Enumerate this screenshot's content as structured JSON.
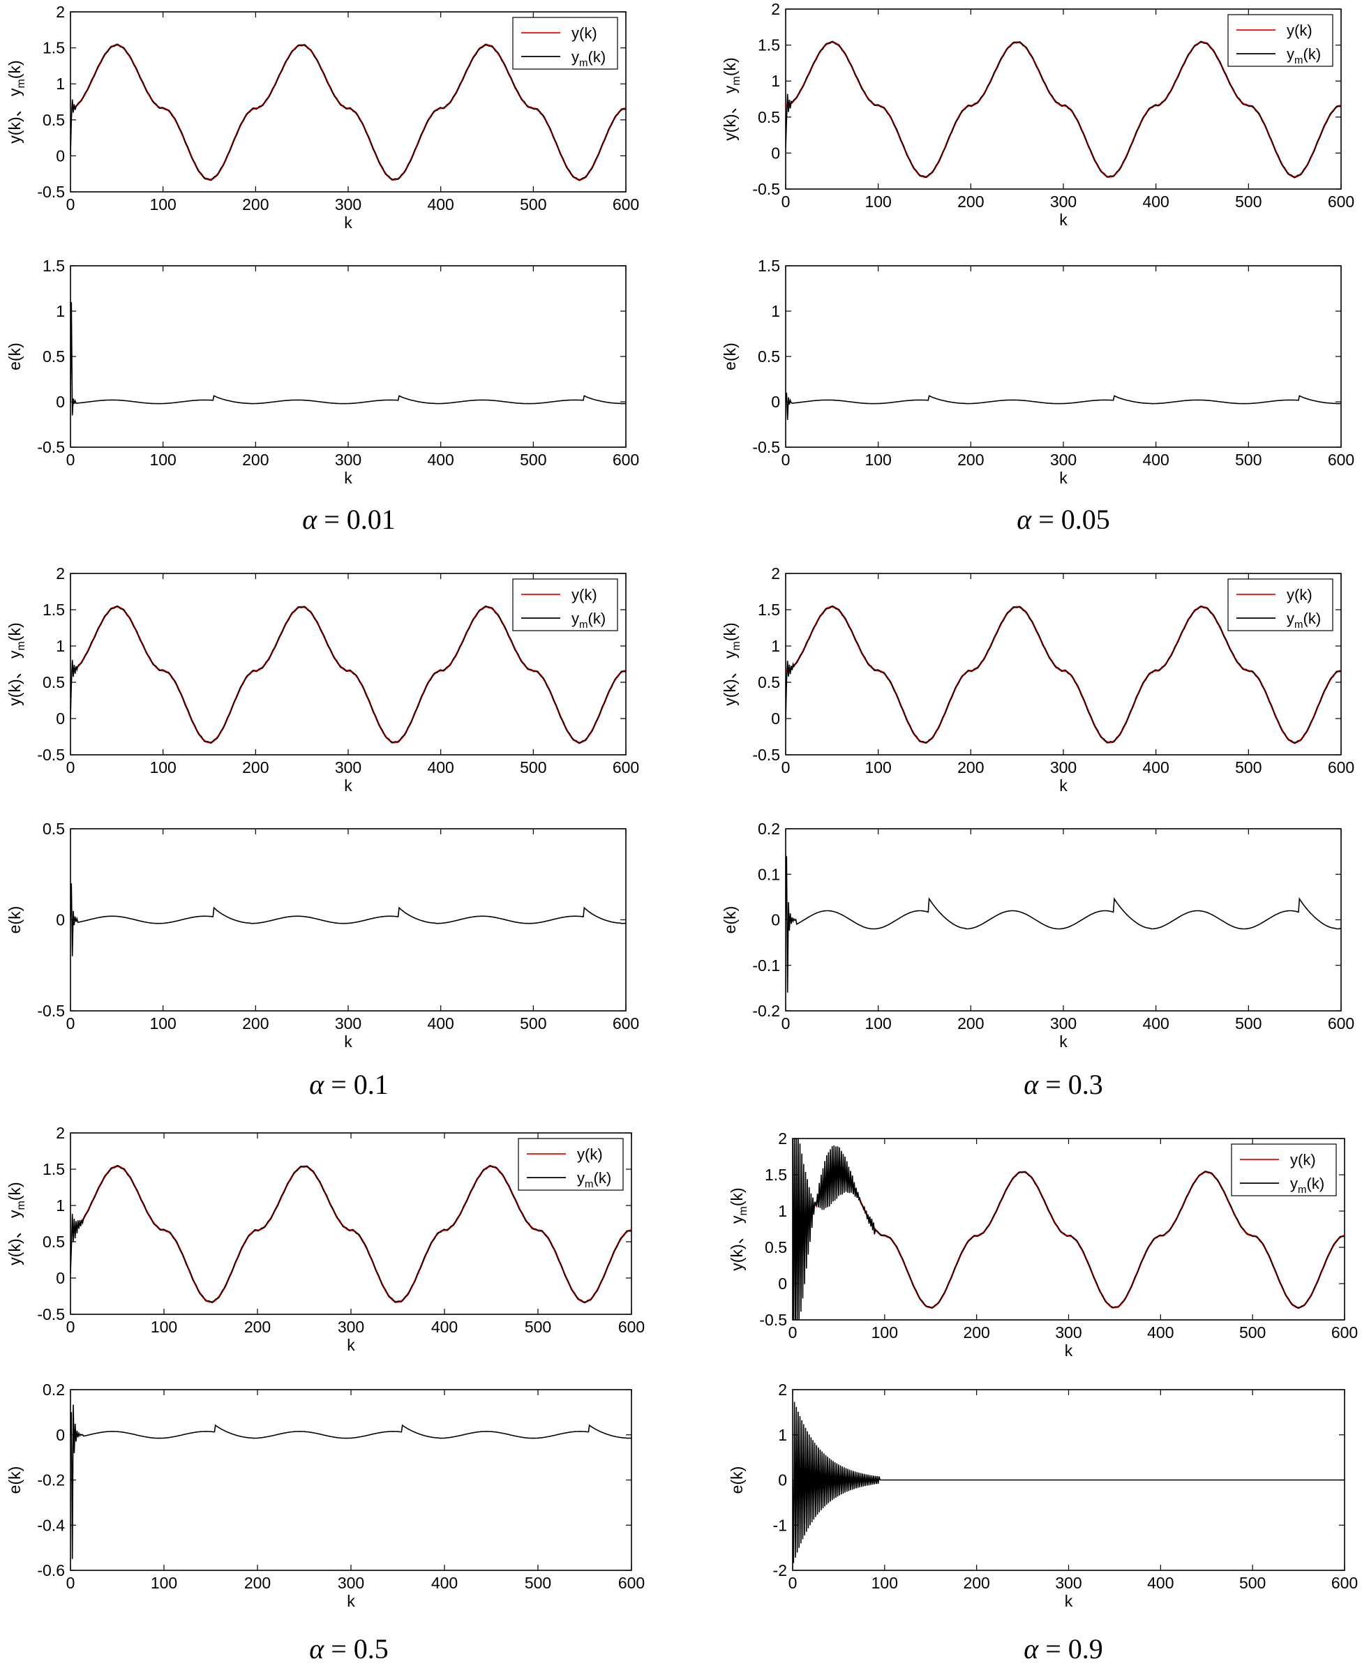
{
  "chart_data": [
    {
      "panel": "a001",
      "caption": {
        "symbol": "α",
        "text": "= 0.01"
      },
      "charts": [
        {
          "type": "line",
          "xlabel": "k",
          "ylabel_main": "y(k)、 y",
          "ylabel_sub": "m",
          "ylabel_end": "(k)",
          "xlim": [
            0,
            600
          ],
          "ylim": [
            -0.5,
            2
          ],
          "xticks": [
            "0",
            "100",
            "200",
            "300",
            "400",
            "500",
            "600"
          ],
          "yticks": [
            "-0.5",
            "0",
            "0.5",
            "1",
            "1.5",
            "2"
          ],
          "legend": [
            {
              "label_main": "y(k)",
              "label_sub": "",
              "label_end": "",
              "color": "#ff0000"
            },
            {
              "label_main": "y",
              "label_sub": "m",
              "label_end": "(k)",
              "color": "#000000"
            }
          ],
          "legend_position": "top-right",
          "series": [
            {
              "name": "y(k)",
              "color": "#ff0000",
              "kind": "reference",
              "start": 0.66,
              "end_k": 600
            },
            {
              "name": "ym(k)",
              "color": "#000000",
              "kind": "model",
              "transient_amp": 0.25,
              "transient_len": 6,
              "lag": 1.5
            }
          ]
        },
        {
          "type": "line",
          "xlabel": "k",
          "ylabel_main": "e(k)",
          "xlim": [
            0,
            600
          ],
          "ylim": [
            -0.5,
            1.5
          ],
          "xticks": [
            "0",
            "100",
            "200",
            "300",
            "400",
            "500",
            "600"
          ],
          "yticks": [
            "-0.5",
            "0",
            "0.5",
            "1",
            "1.5"
          ],
          "series": [
            {
              "name": "e(k)",
              "color": "#000000",
              "kind": "error",
              "spike_peak": 1.1,
              "spike_min": -0.15,
              "transient_len": 6,
              "steady_amp": 0.02,
              "bump": 0.05
            }
          ]
        }
      ]
    },
    {
      "panel": "a005",
      "caption": {
        "symbol": "α",
        "text": "= 0.05"
      },
      "charts": [
        {
          "type": "line",
          "xlabel": "k",
          "ylabel_main": "y(k)、 y",
          "ylabel_sub": "m",
          "ylabel_end": "(k)",
          "xlim": [
            0,
            600
          ],
          "ylim": [
            -0.5,
            2
          ],
          "xticks": [
            "0",
            "100",
            "200",
            "300",
            "400",
            "500",
            "600"
          ],
          "yticks": [
            "-0.5",
            "0",
            "0.5",
            "1",
            "1.5",
            "2"
          ],
          "legend": [
            {
              "label_main": "y(k)",
              "label_sub": "",
              "label_end": "",
              "color": "#ff0000"
            },
            {
              "label_main": "y",
              "label_sub": "m",
              "label_end": "(k)",
              "color": "#000000"
            }
          ],
          "legend_position": "top-right",
          "series": [
            {
              "name": "y(k)",
              "color": "#ff0000",
              "kind": "reference",
              "start": 0.66,
              "end_k": 600
            },
            {
              "name": "ym(k)",
              "color": "#000000",
              "kind": "model",
              "transient_amp": 0.3,
              "transient_len": 7,
              "lag": 1.5
            }
          ]
        },
        {
          "type": "line",
          "xlabel": "k",
          "ylabel_main": "e(k)",
          "xlim": [
            0,
            600
          ],
          "ylim": [
            -0.5,
            1.5
          ],
          "xticks": [
            "0",
            "100",
            "200",
            "300",
            "400",
            "500",
            "600"
          ],
          "yticks": [
            "-0.5",
            "0",
            "0.5",
            "1",
            "1.5"
          ],
          "series": [
            {
              "name": "e(k)",
              "color": "#000000",
              "kind": "error",
              "spike_peak": 0.1,
              "spike_min": -0.2,
              "transient_len": 7,
              "steady_amp": 0.02,
              "bump": 0.05
            }
          ]
        }
      ]
    },
    {
      "panel": "a01",
      "caption": {
        "symbol": "α",
        "text": "= 0.1"
      },
      "charts": [
        {
          "type": "line",
          "xlabel": "k",
          "ylabel_main": "y(k)、 y",
          "ylabel_sub": "m",
          "ylabel_end": "(k)",
          "xlim": [
            0,
            600
          ],
          "ylim": [
            -0.5,
            2
          ],
          "xticks": [
            "0",
            "100",
            "200",
            "300",
            "400",
            "500",
            "600"
          ],
          "yticks": [
            "-0.5",
            "0",
            "0.5",
            "1",
            "1.5",
            "2"
          ],
          "legend": [
            {
              "label_main": "y(k)",
              "label_sub": "",
              "label_end": "",
              "color": "#ff0000"
            },
            {
              "label_main": "y",
              "label_sub": "m",
              "label_end": "(k)",
              "color": "#000000"
            }
          ],
          "legend_position": "top-right",
          "series": [
            {
              "name": "y(k)",
              "color": "#ff0000",
              "kind": "reference",
              "start": 0.66,
              "end_k": 600
            },
            {
              "name": "ym(k)",
              "color": "#000000",
              "kind": "model",
              "transient_amp": 0.25,
              "transient_len": 8,
              "lag": 1.5
            }
          ]
        },
        {
          "type": "line",
          "xlabel": "k",
          "ylabel_main": "e(k)",
          "xlim": [
            0,
            600
          ],
          "ylim": [
            -0.5,
            0.5
          ],
          "xticks": [
            "0",
            "100",
            "200",
            "300",
            "400",
            "500",
            "600"
          ],
          "yticks": [
            "-0.5",
            "0",
            "0.5"
          ],
          "series": [
            {
              "name": "e(k)",
              "color": "#000000",
              "kind": "error",
              "spike_peak": 0.2,
              "spike_min": -0.2,
              "transient_len": 8,
              "steady_amp": 0.02,
              "bump": 0.05
            }
          ]
        }
      ]
    },
    {
      "panel": "a03",
      "caption": {
        "symbol": "α",
        "text": "= 0.3"
      },
      "charts": [
        {
          "type": "line",
          "xlabel": "k",
          "ylabel_main": "y(k)、 y",
          "ylabel_sub": "m",
          "ylabel_end": "(k)",
          "xlim": [
            0,
            600
          ],
          "ylim": [
            -0.5,
            2
          ],
          "xticks": [
            "0",
            "100",
            "200",
            "300",
            "400",
            "500",
            "600"
          ],
          "yticks": [
            "-0.5",
            "0",
            "0.5",
            "1",
            "1.5",
            "2"
          ],
          "legend": [
            {
              "label_main": "y(k)",
              "label_sub": "",
              "label_end": "",
              "color": "#ff0000"
            },
            {
              "label_main": "y",
              "label_sub": "m",
              "label_end": "(k)",
              "color": "#000000"
            }
          ],
          "legend_position": "top-right",
          "series": [
            {
              "name": "y(k)",
              "color": "#ff0000",
              "kind": "reference",
              "start": 0.66,
              "end_k": 600
            },
            {
              "name": "ym(k)",
              "color": "#000000",
              "kind": "model",
              "transient_amp": 0.2,
              "transient_len": 10,
              "lag": 1.5
            }
          ]
        },
        {
          "type": "line",
          "xlabel": "k",
          "ylabel_main": "e(k)",
          "xlim": [
            0,
            600
          ],
          "ylim": [
            -0.2,
            0.2
          ],
          "xticks": [
            "0",
            "100",
            "200",
            "300",
            "400",
            "500",
            "600"
          ],
          "yticks": [
            "-0.2",
            "-0.1",
            "0",
            "0.1",
            "0.2"
          ],
          "series": [
            {
              "name": "e(k)",
              "color": "#000000",
              "kind": "error",
              "spike_peak": 0.14,
              "spike_min": -0.16,
              "transient_len": 12,
              "steady_amp": 0.02,
              "bump": 0.03
            }
          ]
        }
      ]
    },
    {
      "panel": "a05",
      "caption": {
        "symbol": "α",
        "text": "= 0.5"
      },
      "charts": [
        {
          "type": "line",
          "xlabel": "k",
          "ylabel_main": "y(k)、 y",
          "ylabel_sub": "m",
          "ylabel_end": "(k)",
          "xlim": [
            0,
            600
          ],
          "ylim": [
            -0.5,
            2
          ],
          "xticks": [
            "0",
            "100",
            "200",
            "300",
            "400",
            "500",
            "600"
          ],
          "yticks": [
            "-0.5",
            "0",
            "0.5",
            "1",
            "1.5",
            "2"
          ],
          "legend": [
            {
              "label_main": "y(k)",
              "label_sub": "",
              "label_end": "",
              "color": "#ff0000"
            },
            {
              "label_main": "y",
              "label_sub": "m",
              "label_end": "(k)",
              "color": "#000000"
            }
          ],
          "legend_position": "top-right",
          "series": [
            {
              "name": "y(k)",
              "color": "#ff0000",
              "kind": "reference",
              "start": 0.66,
              "end_k": 600
            },
            {
              "name": "ym(k)",
              "color": "#000000",
              "kind": "model",
              "transient_amp": 0.3,
              "transient_len": 14,
              "lag": 1.5
            }
          ]
        },
        {
          "type": "line",
          "xlabel": "k",
          "ylabel_main": "e(k)",
          "xlim": [
            0,
            600
          ],
          "ylim": [
            -0.6,
            0.2
          ],
          "xticks": [
            "0",
            "100",
            "200",
            "300",
            "400",
            "500",
            "600"
          ],
          "yticks": [
            "-0.6",
            "-0.4",
            "-0.2",
            "0",
            "0.2"
          ],
          "series": [
            {
              "name": "e(k)",
              "color": "#000000",
              "kind": "error",
              "spike_peak": 0.1,
              "spike_min": -0.55,
              "transient_len": 14,
              "steady_amp": 0.015,
              "bump": 0.03
            }
          ]
        }
      ]
    },
    {
      "panel": "a09",
      "caption": {
        "symbol": "α",
        "text": "= 0.9"
      },
      "charts": [
        {
          "type": "line",
          "xlabel": "k",
          "ylabel_main": "y(k)、 y",
          "ylabel_sub": "m",
          "ylabel_end": "(k)",
          "xlim": [
            0,
            600
          ],
          "ylim": [
            -0.5,
            2
          ],
          "xticks": [
            "0",
            "100",
            "200",
            "300",
            "400",
            "500",
            "600"
          ],
          "yticks": [
            "-0.5",
            "0",
            "0.5",
            "1",
            "1.5",
            "2"
          ],
          "legend": [
            {
              "label_main": "y(k)",
              "label_sub": "",
              "label_end": "",
              "color": "#ff0000"
            },
            {
              "label_main": "y",
              "label_sub": "m",
              "label_end": "(k)",
              "color": "#000000"
            }
          ],
          "legend_position": "top-right",
          "series": [
            {
              "name": "y(k)",
              "color": "#ff0000",
              "kind": "reference",
              "start": 0.66,
              "end_k": 600
            },
            {
              "name": "ym(k)",
              "color": "#000000",
              "kind": "model_osc",
              "transient_amp": 1.8,
              "transient_len": 90,
              "lag": 1.5
            }
          ]
        },
        {
          "type": "line",
          "xlabel": "k",
          "ylabel_main": "e(k)",
          "xlim": [
            0,
            600
          ],
          "ylim": [
            -2,
            2
          ],
          "xticks": [
            "0",
            "100",
            "200",
            "300",
            "400",
            "500",
            "600"
          ],
          "yticks": [
            "-2",
            "-1",
            "0",
            "1",
            "2"
          ],
          "series": [
            {
              "name": "e(k)",
              "color": "#000000",
              "kind": "error_osc",
              "spike_peak": 1.85,
              "spike_min": -1.9,
              "transient_len": 95,
              "steady_amp": 0.0,
              "bump": 0.0
            }
          ]
        }
      ]
    }
  ]
}
